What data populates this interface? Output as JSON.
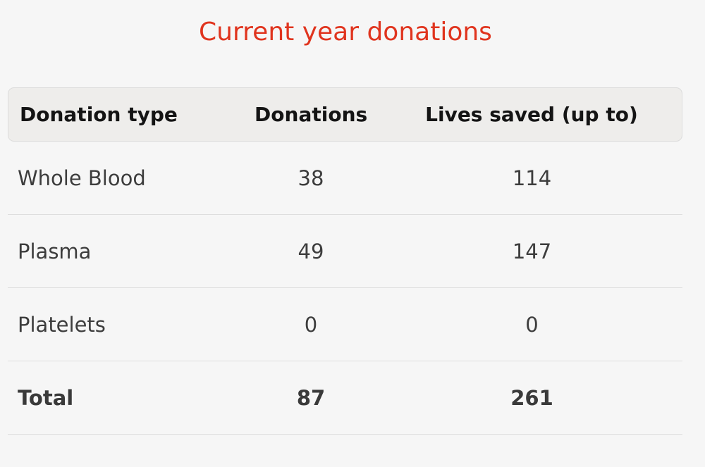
{
  "title": "Current year donations",
  "table": {
    "headers": [
      "Donation type",
      "Donations",
      "Lives saved (up to)"
    ],
    "rows": [
      {
        "type": "Whole Blood",
        "donations": "38",
        "lives": "114"
      },
      {
        "type": "Plasma",
        "donations": "49",
        "lives": "147"
      },
      {
        "type": "Platelets",
        "donations": "0",
        "lives": "0"
      }
    ],
    "total": {
      "type": "Total",
      "donations": "87",
      "lives": "261"
    }
  },
  "colors": {
    "title": "#e0341e",
    "background": "#f6f6f6",
    "header_background": "#eeedeb"
  }
}
